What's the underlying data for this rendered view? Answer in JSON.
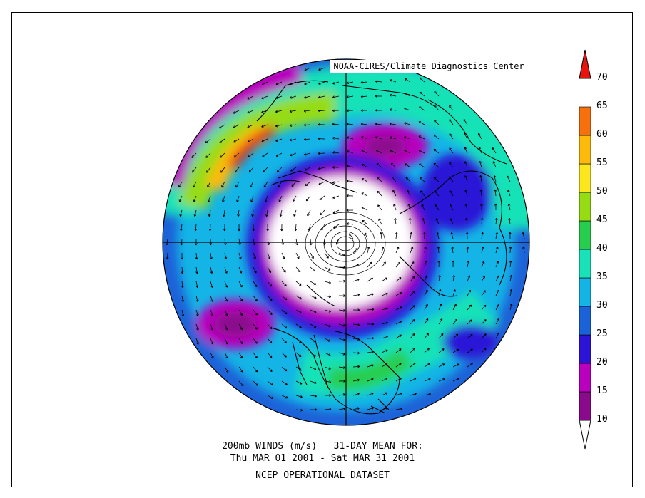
{
  "credit": "NOAA-CIRES/Climate Diagnostics Center",
  "caption": {
    "line1": "200mb WINDS (m/s)   31-DAY MEAN FOR:",
    "line2": "Thu MAR 01 2001 - Sat MAR 31 2001",
    "line3": "NCEP OPERATIONAL DATASET"
  },
  "colorbar": {
    "levels": [
      "10",
      "15",
      "20",
      "25",
      "30",
      "35",
      "40",
      "45",
      "50",
      "55",
      "60",
      "65",
      "70"
    ],
    "colors": [
      "#ffffff",
      "#8a0a8c",
      "#b800bd",
      "#2b14d6",
      "#1a62d8",
      "#14b4e6",
      "#19e2b8",
      "#27ce4e",
      "#96dc12",
      "#fce61c",
      "#fdb90c",
      "#f6700e",
      "#e8120e"
    ]
  },
  "projection": "north-polar-stereographic"
}
